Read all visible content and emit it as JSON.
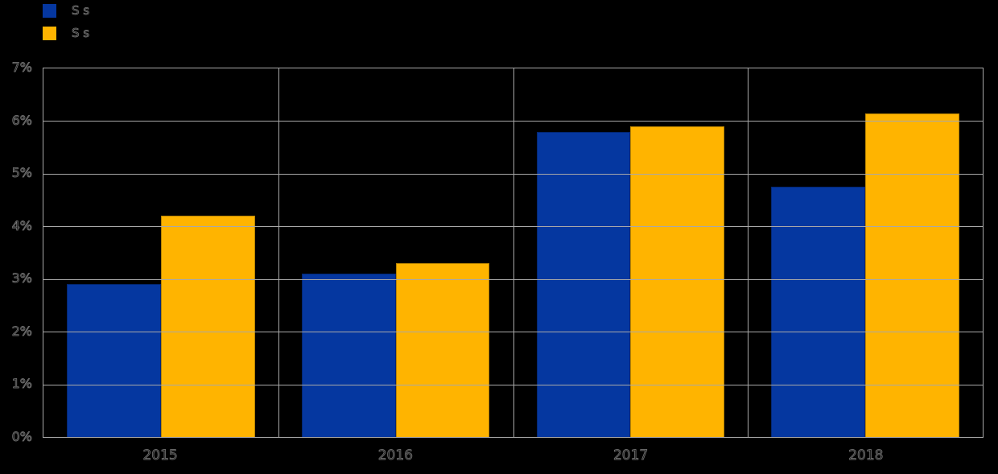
{
  "legend": {
    "items": [
      {
        "label": "S s",
        "color": "#0537A0"
      },
      {
        "label": "S s",
        "color": "#FFB400"
      }
    ]
  },
  "chart_data": {
    "type": "bar",
    "title": "",
    "xlabel": "",
    "ylabel": "",
    "categories": [
      "2015",
      "2016",
      "2017",
      "2018"
    ],
    "series": [
      {
        "name": "S s",
        "color": "#0537A0",
        "values": [
          2.9,
          3.1,
          5.8,
          4.75
        ]
      },
      {
        "name": "S s",
        "color": "#FFB400",
        "values": [
          4.2,
          3.3,
          5.9,
          6.15
        ]
      }
    ],
    "ylim": [
      0,
      7
    ],
    "y_ticks": [
      "0%",
      "1%",
      "2%",
      "3%",
      "4%",
      "5%",
      "6%",
      "7%"
    ],
    "grid": true,
    "legend_position": "top-left"
  },
  "style": {
    "background": "#000000",
    "grid_color": "#A8A8A8",
    "text_outline": "#7D7D7D"
  }
}
